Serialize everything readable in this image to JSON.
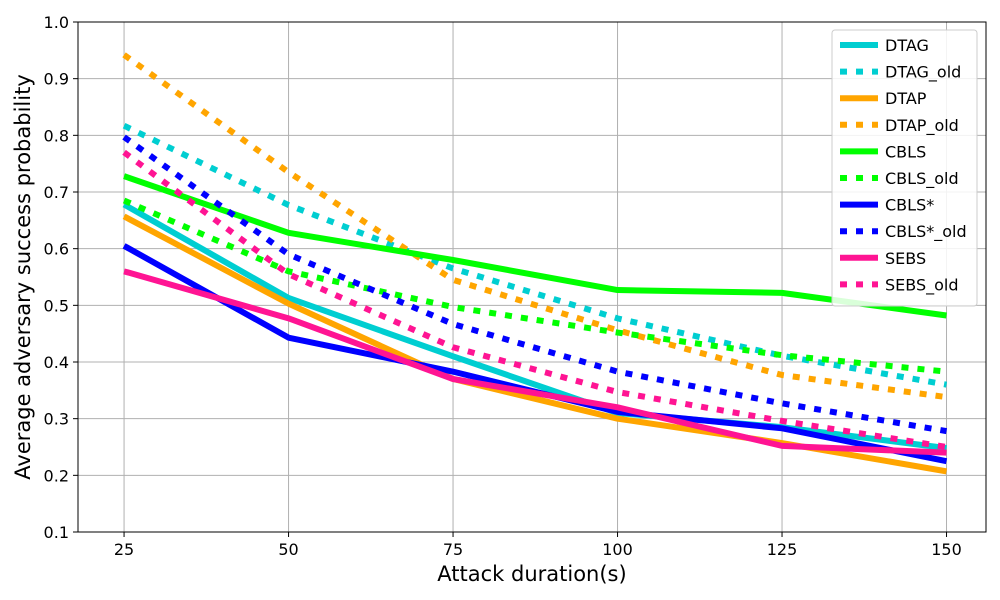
{
  "chart_data": {
    "type": "line",
    "title": "",
    "xlabel": "Attack duration(s)",
    "ylabel": "Average adversary success probability",
    "x": [
      25,
      50,
      75,
      100,
      125,
      150
    ],
    "x_ticks": [
      "25",
      "50",
      "75",
      "100",
      "125",
      "150"
    ],
    "y_ticks": [
      "0.1",
      "0.2",
      "0.3",
      "0.4",
      "0.5",
      "0.6",
      "0.7",
      "0.8",
      "0.9",
      "1.0"
    ],
    "xlim": [
      18,
      156
    ],
    "ylim": [
      0.1,
      1.0
    ],
    "grid": true,
    "legend_position": "top-right",
    "series": [
      {
        "name": "DTAG",
        "color": "#00CED1",
        "style": "solid",
        "values": [
          0.678,
          0.513,
          0.41,
          0.31,
          0.285,
          0.248
        ]
      },
      {
        "name": "DTAG_old",
        "color": "#00CED1",
        "style": "dotted",
        "values": [
          0.817,
          0.677,
          0.565,
          0.477,
          0.411,
          0.36
        ]
      },
      {
        "name": "DTAP",
        "color": "#FFA500",
        "style": "solid",
        "values": [
          0.657,
          0.503,
          0.37,
          0.3,
          0.257,
          0.207
        ]
      },
      {
        "name": "DTAP_old",
        "color": "#FFA500",
        "style": "dotted",
        "values": [
          0.942,
          0.735,
          0.545,
          0.456,
          0.377,
          0.338
        ]
      },
      {
        "name": "CBLS",
        "color": "#00FF00",
        "style": "solid",
        "values": [
          0.728,
          0.628,
          0.58,
          0.527,
          0.522,
          0.482
        ]
      },
      {
        "name": "CBLS_old",
        "color": "#00FF00",
        "style": "dotted",
        "values": [
          0.685,
          0.56,
          0.497,
          0.452,
          0.412,
          0.383
        ]
      },
      {
        "name": "CBLS*",
        "color": "#0000FF",
        "style": "solid",
        "values": [
          0.605,
          0.443,
          0.383,
          0.312,
          0.283,
          0.225
        ]
      },
      {
        "name": "CBLS*_old",
        "color": "#0000FF",
        "style": "dotted",
        "values": [
          0.797,
          0.59,
          0.467,
          0.383,
          0.327,
          0.278
        ]
      },
      {
        "name": "SEBS",
        "color": "#FF1493",
        "style": "solid",
        "values": [
          0.56,
          0.477,
          0.37,
          0.32,
          0.252,
          0.24
        ]
      },
      {
        "name": "SEBS_old",
        "color": "#FF1493",
        "style": "dotted",
        "values": [
          0.77,
          0.555,
          0.426,
          0.347,
          0.296,
          0.25
        ]
      }
    ]
  }
}
